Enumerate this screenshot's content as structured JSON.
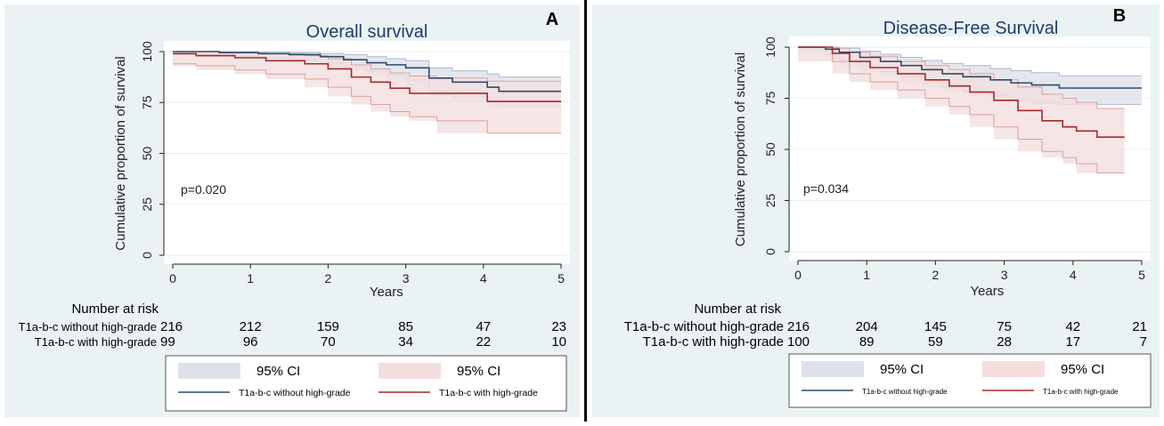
{
  "chart_data": [
    {
      "panel_label": "A",
      "type": "line",
      "title": "Overall survival",
      "xlabel": "Years",
      "ylabel": "Cumulative proportion of survival",
      "xlim": [
        0,
        5
      ],
      "ylim": [
        0,
        100
      ],
      "xticks": [
        0,
        1,
        2,
        3,
        4,
        5
      ],
      "yticks": [
        0,
        25,
        50,
        75,
        100
      ],
      "grid": true,
      "annotation": "p=0.020",
      "series": [
        {
          "name": "T1a-b-c without high-grade",
          "color": "#2e4a6b",
          "steps": [
            [
              0,
              100
            ],
            [
              0.6,
              99.5
            ],
            [
              1.1,
              99
            ],
            [
              1.5,
              98.5
            ],
            [
              1.9,
              97.5
            ],
            [
              2.2,
              96
            ],
            [
              2.5,
              94.5
            ],
            [
              2.75,
              93.5
            ],
            [
              3.0,
              92
            ],
            [
              3.3,
              87
            ],
            [
              3.6,
              85
            ],
            [
              4.05,
              82.5
            ],
            [
              4.2,
              80.5
            ],
            [
              5.0,
              80.5
            ]
          ],
          "ci_lower": [
            [
              0,
              98.5
            ],
            [
              0.6,
              98
            ],
            [
              1.1,
              97
            ],
            [
              1.5,
              96
            ],
            [
              1.9,
              94.5
            ],
            [
              2.2,
              92.5
            ],
            [
              2.5,
              90.5
            ],
            [
              2.75,
              88.5
            ],
            [
              3.0,
              86
            ],
            [
              3.3,
              80.5
            ],
            [
              3.6,
              78
            ],
            [
              4.05,
              75
            ],
            [
              4.2,
              73
            ],
            [
              5.0,
              73
            ]
          ],
          "ci_upper": [
            [
              0,
              100
            ],
            [
              0.6,
              100
            ],
            [
              1.1,
              99.8
            ],
            [
              1.5,
              99.5
            ],
            [
              1.9,
              99
            ],
            [
              2.2,
              98.5
            ],
            [
              2.5,
              97.5
            ],
            [
              2.75,
              96.5
            ],
            [
              3.0,
              95.5
            ],
            [
              3.3,
              92
            ],
            [
              3.6,
              90.5
            ],
            [
              4.05,
              89
            ],
            [
              4.2,
              87.5
            ],
            [
              5.0,
              87.5
            ]
          ]
        },
        {
          "name": "T1a-b-c with high-grade",
          "color": "#a8282b",
          "steps": [
            [
              0,
              99
            ],
            [
              0.3,
              98
            ],
            [
              0.8,
              97
            ],
            [
              1.2,
              95.5
            ],
            [
              1.7,
              94
            ],
            [
              2.0,
              91.5
            ],
            [
              2.3,
              87.5
            ],
            [
              2.55,
              85
            ],
            [
              2.8,
              82
            ],
            [
              3.05,
              79.5
            ],
            [
              3.4,
              79.5
            ],
            [
              4.05,
              75.5
            ],
            [
              5.0,
              75.5
            ]
          ],
          "ci_lower": [
            [
              0,
              94
            ],
            [
              0.3,
              93
            ],
            [
              0.8,
              91
            ],
            [
              1.2,
              89
            ],
            [
              1.7,
              86.5
            ],
            [
              2.0,
              82.5
            ],
            [
              2.3,
              78
            ],
            [
              2.55,
              74
            ],
            [
              2.8,
              70.5
            ],
            [
              3.05,
              68
            ],
            [
              3.4,
              66
            ],
            [
              4.05,
              60
            ],
            [
              5.0,
              60
            ]
          ],
          "ci_upper": [
            [
              0,
              100
            ],
            [
              0.3,
              100
            ],
            [
              0.8,
              99.5
            ],
            [
              1.2,
              99
            ],
            [
              1.7,
              98
            ],
            [
              2.0,
              96.5
            ],
            [
              2.3,
              93.5
            ],
            [
              2.55,
              91.5
            ],
            [
              2.8,
              89.5
            ],
            [
              3.05,
              88
            ],
            [
              3.4,
              87
            ],
            [
              4.05,
              85.5
            ],
            [
              5.0,
              85.5
            ]
          ]
        }
      ],
      "risk_table": {
        "header": "Number at risk",
        "rows": [
          {
            "label": "T1a-b-c without high-grade",
            "values": [
              "216",
              "212",
              "159",
              "85",
              "47",
              "23"
            ]
          },
          {
            "label": "T1a-b-c with high-grade",
            "values": [
              "99",
              "96",
              "70",
              "34",
              "22",
              "10"
            ]
          }
        ]
      },
      "legend": {
        "placement": "bottom",
        "items": [
          {
            "label": "95% CI",
            "kind": "ci",
            "color": "#dde2ea"
          },
          {
            "label": "95% CI",
            "kind": "ci",
            "color": "#f3dede"
          },
          {
            "label": "T1a-b-c without high-grade",
            "kind": "line",
            "color": "#2e4a6b"
          },
          {
            "label": "T1a-b-c with high-grade",
            "kind": "line",
            "color": "#a8282b"
          }
        ]
      }
    },
    {
      "panel_label": "B",
      "type": "line",
      "title": "Disease-Free Survival",
      "xlabel": "Years",
      "ylabel": "Cumulative proportion of survival",
      "xlim": [
        0,
        5
      ],
      "ylim": [
        0,
        100
      ],
      "xticks": [
        0,
        1,
        2,
        3,
        4,
        5
      ],
      "yticks": [
        0,
        25,
        50,
        75,
        100
      ],
      "grid": true,
      "annotation": "p=0.034",
      "series": [
        {
          "name": "T1a-b-c without high-grade",
          "color": "#2e4a6b",
          "steps": [
            [
              0,
              100
            ],
            [
              0.4,
              99
            ],
            [
              0.6,
              97.5
            ],
            [
              0.9,
              95
            ],
            [
              1.2,
              93
            ],
            [
              1.5,
              91
            ],
            [
              1.8,
              89
            ],
            [
              2.1,
              87
            ],
            [
              2.4,
              85.5
            ],
            [
              2.8,
              84
            ],
            [
              3.1,
              82.5
            ],
            [
              3.4,
              81.5
            ],
            [
              3.8,
              80
            ],
            [
              5.0,
              80
            ]
          ],
          "ci_lower": [
            [
              0,
              100
            ],
            [
              0.4,
              96.5
            ],
            [
              0.6,
              94
            ],
            [
              0.9,
              91
            ],
            [
              1.2,
              88
            ],
            [
              1.5,
              85.5
            ],
            [
              1.8,
              83
            ],
            [
              2.1,
              80.5
            ],
            [
              2.4,
              78.5
            ],
            [
              2.8,
              76.5
            ],
            [
              3.1,
              74.5
            ],
            [
              3.4,
              73
            ],
            [
              3.8,
              72
            ],
            [
              5.0,
              72
            ]
          ],
          "ci_upper": [
            [
              0,
              100
            ],
            [
              0.4,
              100
            ],
            [
              0.6,
              99.5
            ],
            [
              0.9,
              98
            ],
            [
              1.2,
              96.5
            ],
            [
              1.5,
              95
            ],
            [
              1.8,
              93.5
            ],
            [
              2.1,
              92
            ],
            [
              2.4,
              91
            ],
            [
              2.8,
              89.5
            ],
            [
              3.1,
              88.5
            ],
            [
              3.4,
              87.5
            ],
            [
              3.8,
              86
            ],
            [
              5.0,
              86
            ]
          ]
        },
        {
          "name": "T1a-b-c with high-grade",
          "color": "#a8282b",
          "steps": [
            [
              0,
              100
            ],
            [
              0.5,
              97
            ],
            [
              0.75,
              93
            ],
            [
              1.05,
              90
            ],
            [
              1.45,
              87
            ],
            [
              1.85,
              84
            ],
            [
              2.2,
              81
            ],
            [
              2.5,
              78
            ],
            [
              2.85,
              74
            ],
            [
              3.2,
              69
            ],
            [
              3.55,
              64
            ],
            [
              3.85,
              61
            ],
            [
              4.05,
              59
            ],
            [
              4.35,
              56
            ],
            [
              4.75,
              56
            ]
          ],
          "ci_lower": [
            [
              0,
              100
            ],
            [
              0.5,
              93
            ],
            [
              0.75,
              87
            ],
            [
              1.05,
              83
            ],
            [
              1.45,
              79
            ],
            [
              1.85,
              75
            ],
            [
              2.2,
              71
            ],
            [
              2.5,
              67
            ],
            [
              2.85,
              61
            ],
            [
              3.2,
              55
            ],
            [
              3.55,
              49
            ],
            [
              3.85,
              46
            ],
            [
              4.05,
              43
            ],
            [
              4.35,
              38.5
            ],
            [
              4.75,
              38.5
            ]
          ],
          "ci_upper": [
            [
              0,
              100
            ],
            [
              0.5,
              99.5
            ],
            [
              0.75,
              97.5
            ],
            [
              1.05,
              95.5
            ],
            [
              1.45,
              93
            ],
            [
              1.85,
              91
            ],
            [
              2.2,
              89
            ],
            [
              2.5,
              87
            ],
            [
              2.85,
              84
            ],
            [
              3.2,
              80.5
            ],
            [
              3.55,
              77
            ],
            [
              3.85,
              75
            ],
            [
              4.05,
              73
            ],
            [
              4.35,
              70
            ],
            [
              4.75,
              70
            ]
          ]
        }
      ],
      "risk_table": {
        "header": "Number at risk",
        "rows": [
          {
            "label": "T1a-b-c without high-grade",
            "values": [
              "216",
              "204",
              "145",
              "75",
              "42",
              "21"
            ]
          },
          {
            "label": "T1a-b-c with high-grade",
            "values": [
              "100",
              "89",
              "59",
              "28",
              "17",
              "7"
            ]
          }
        ]
      },
      "legend": {
        "placement": "bottom",
        "items": [
          {
            "label": "95% CI",
            "kind": "ci",
            "color": "#dde2ea"
          },
          {
            "label": "95% CI",
            "kind": "ci",
            "color": "#f3dede"
          },
          {
            "label": "T1a-b-c without high-grade",
            "kind": "line",
            "color": "#2e4a6b"
          },
          {
            "label": "T1a-b-c with high-grade",
            "kind": "line",
            "color": "#a8282b"
          }
        ]
      }
    }
  ]
}
